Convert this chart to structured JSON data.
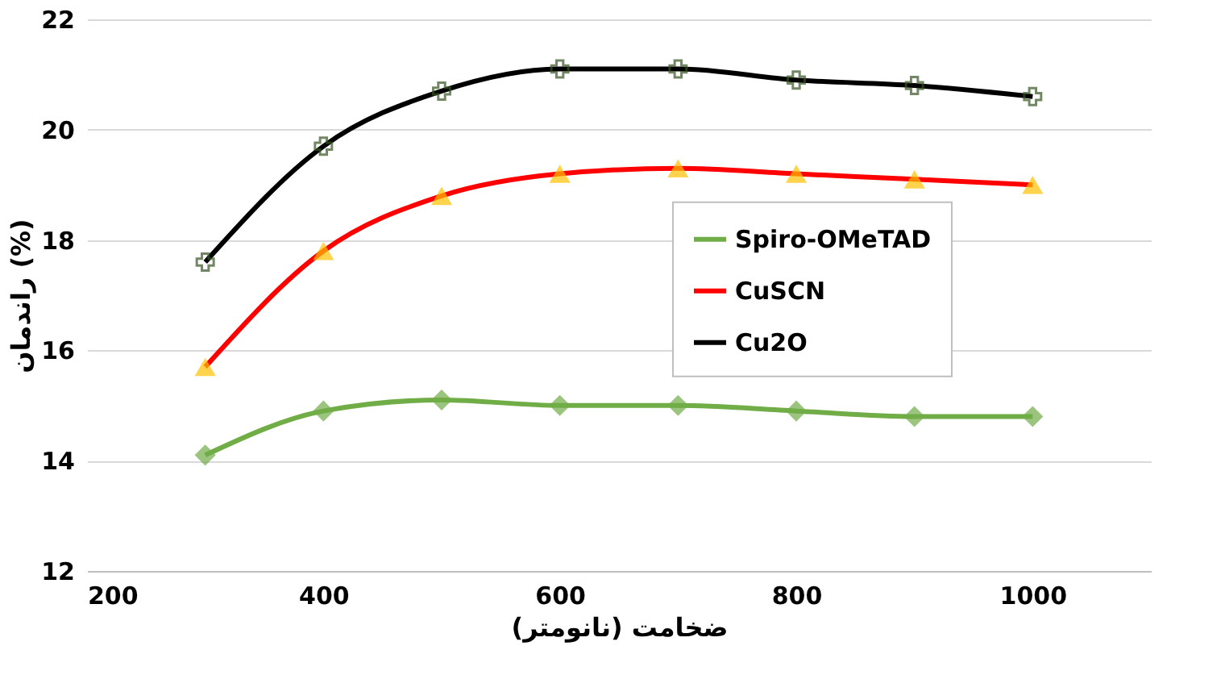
{
  "chart_data": {
    "type": "line",
    "xlabel": "ضخامت (نانومتر)",
    "ylabel": "راندمان (%)",
    "x": [
      300,
      400,
      500,
      600,
      700,
      800,
      900,
      1000
    ],
    "series": [
      {
        "name": "Spiro-OMeTAD",
        "color": "#70ad47",
        "marker": "diamond",
        "colors": [
          "#70ad47",
          "#70ad47",
          "#70ad47",
          "#70ad47",
          "#70ad47",
          "#70ad47",
          "#70ad47",
          "#70ad47"
        ],
        "values": [
          14.1,
          14.9,
          15.1,
          15.0,
          15.0,
          14.9,
          14.8,
          14.8
        ]
      },
      {
        "name": "CuSCN",
        "color": "#ff0000",
        "marker": "triangle",
        "colors": [
          "#ffc000",
          "#ffc000",
          "#ffc000",
          "#ffc000",
          "#ffc000",
          "#ffc000",
          "#ffc000",
          "#ffc000"
        ],
        "values": [
          15.7,
          17.8,
          18.8,
          19.2,
          19.3,
          19.2,
          19.1,
          19.0
        ]
      },
      {
        "name": "Cu2O",
        "color": "#000000",
        "marker": "cross",
        "colors": [
          "#375623",
          "#375623",
          "#375623",
          "#375623",
          "#375623",
          "#375623",
          "#375623",
          "#375623"
        ],
        "values": [
          17.6,
          19.7,
          20.7,
          21.1,
          21.1,
          20.9,
          20.8,
          20.6
        ]
      }
    ],
    "xlim": [
      200,
      1100
    ],
    "xticks": [
      200,
      400,
      600,
      800,
      1000
    ],
    "ylim": [
      12,
      22
    ],
    "yticks": [
      12,
      14,
      16,
      18,
      20,
      22
    ],
    "grid": "y",
    "legend": "right",
    "line_style": "solid"
  }
}
